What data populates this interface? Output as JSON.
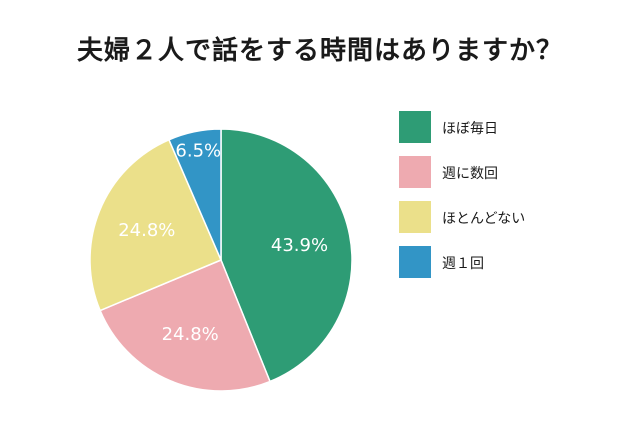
{
  "title": "夫婦２人で話をする時間はありますか？",
  "chart_data": {
    "type": "pie",
    "title": "夫婦２人で話をする時間はありますか？",
    "start": "12 o'clock",
    "direction": "clockwise",
    "legend": "right",
    "slices": [
      {
        "label": "ほぼ毎日",
        "value": 43.9,
        "display": "43.9%",
        "color": "#2e9c75"
      },
      {
        "label": "週に数回",
        "value": 24.8,
        "display": "24.8%",
        "color": "#eeaab0"
      },
      {
        "label": "ほとんどない",
        "value": 24.8,
        "display": "24.8%",
        "color": "#ebe08a"
      },
      {
        "label": "週１回",
        "value": 6.5,
        "display": "6.5%",
        "color": "#3295c6"
      }
    ]
  }
}
